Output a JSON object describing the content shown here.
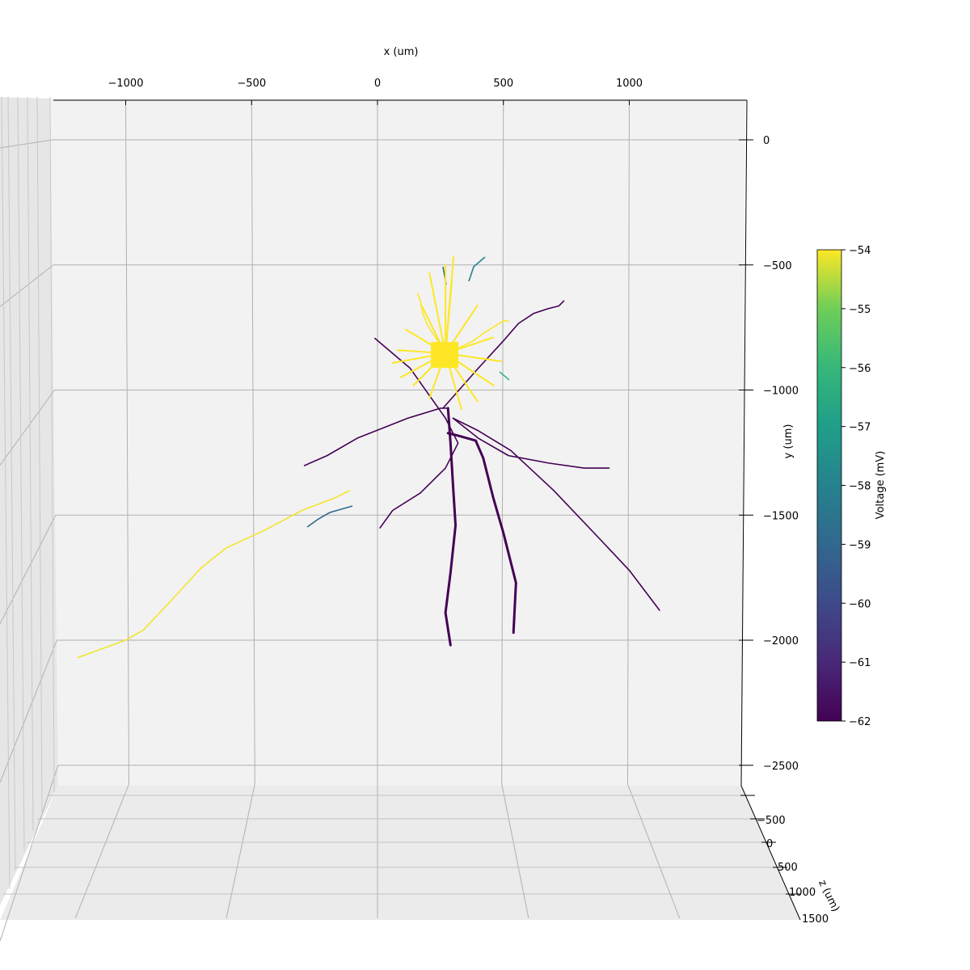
{
  "chart_data": {
    "type": "line",
    "projection": "3d",
    "title": "",
    "xlabel": "x (um)",
    "ylabel": "y (um)",
    "zlabel": "z (um)",
    "xlim": [
      -1000,
      1400
    ],
    "ylim": [
      -2500,
      0
    ],
    "zlim": [
      -500,
      1500
    ],
    "x_ticks": [
      "−1000",
      "−500",
      "0",
      "500",
      "1000"
    ],
    "x_tick_values": [
      -1000,
      -500,
      0,
      500,
      1000
    ],
    "y_ticks": [
      "0",
      "−500",
      "−1000",
      "−1500",
      "−2000",
      "−2500"
    ],
    "y_tick_values": [
      0,
      -500,
      -1000,
      -1500,
      -2000,
      -2500
    ],
    "z_ticks": [
      "−500",
      "0",
      "500",
      "1000",
      "1500"
    ],
    "z_tick_values": [
      -500,
      0,
      500,
      1000,
      1500
    ],
    "grid": true,
    "colorbar": {
      "label": "Voltage (mV)",
      "ticks": [
        "−54",
        "−55",
        "−56",
        "−57",
        "−58",
        "−59",
        "−60",
        "−61",
        "−62"
      ],
      "tick_values": [
        -54,
        -55,
        -56,
        -57,
        -58,
        -59,
        -60,
        -61,
        -62
      ],
      "range": [
        -62,
        -54
      ],
      "colormap": "viridis"
    },
    "series": [
      {
        "x": [
          -1190,
          -1000,
          -930,
          -800,
          -700,
          -600,
          -450,
          -300,
          -170,
          -110
        ],
        "y": [
          -2060,
          -1990,
          -1950,
          -1810,
          -1700,
          -1620,
          -1550,
          -1470,
          -1420,
          -1390
        ],
        "color": "yellow-green"
      },
      {
        "x": [
          -290,
          -200,
          -80,
          120,
          250,
          280
        ],
        "y": [
          -1290,
          -1250,
          -1180,
          -1100,
          -1060,
          -1060
        ],
        "color": "dark"
      },
      {
        "x": [
          10,
          60,
          170,
          270,
          320,
          270,
          130,
          -10
        ],
        "y": [
          -1540,
          -1470,
          -1400,
          -1300,
          -1200,
          -1100,
          -900,
          -780
        ],
        "color": "dark"
      },
      {
        "x": [
          260,
          400,
          500,
          560,
          620,
          680,
          720,
          740
        ],
        "y": [
          -1060,
          -900,
          -790,
          -720,
          -680,
          -660,
          -650,
          -630
        ],
        "color": "dark"
      },
      {
        "x": [
          280,
          320,
          390,
          420,
          460,
          500,
          550,
          540
        ],
        "y": [
          -1160,
          -1170,
          -1190,
          -1260,
          -1420,
          -1560,
          -1760,
          -1960
        ],
        "color": "dark"
      },
      {
        "x": [
          280,
          290,
          300,
          310,
          290,
          270,
          290
        ],
        "y": [
          -1060,
          -1200,
          -1370,
          -1530,
          -1720,
          -1880,
          -2010
        ],
        "color": "dark"
      },
      {
        "x": [
          300,
          400,
          530,
          700,
          860,
          1000,
          1120
        ],
        "y": [
          -1100,
          -1150,
          -1230,
          -1390,
          -1560,
          -1710,
          -1870
        ],
        "color": "dark"
      },
      {
        "x": [
          300,
          400,
          520,
          680,
          820,
          920
        ],
        "y": [
          -1100,
          -1180,
          -1250,
          -1280,
          -1300,
          -1300
        ],
        "color": "dark"
      },
      {
        "x": [
          270,
          320,
          380,
          420,
          500,
          520
        ],
        "y": [
          -840,
          -820,
          -790,
          -760,
          -710,
          -710
        ],
        "color": "yellow"
      },
      {
        "x": [
          270,
          240,
          200,
          180,
          170,
          160
        ],
        "y": [
          -840,
          -790,
          -730,
          -680,
          -630,
          -600
        ],
        "color": "yellow"
      }
    ],
    "soma": {
      "x": 270,
      "y": -840
    }
  }
}
